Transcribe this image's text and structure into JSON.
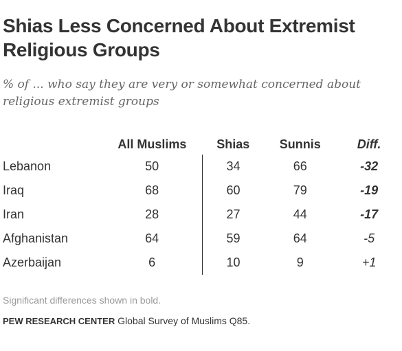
{
  "chart_data": {
    "type": "table",
    "title": "Shias Less Concerned About Extremist Religious Groups",
    "subtitle": "% of ... who say they are very or somewhat concerned about religious extremist groups",
    "columns": [
      "All Muslims",
      "Shias",
      "Sunnis",
      "Diff."
    ],
    "rows": [
      {
        "country": "Lebanon",
        "values": [
          "50",
          "34",
          "66",
          "-32"
        ],
        "diff_significant": true
      },
      {
        "country": "Iraq",
        "values": [
          "68",
          "60",
          "79",
          "-19"
        ],
        "diff_significant": true
      },
      {
        "country": "Iran",
        "values": [
          "28",
          "27",
          "44",
          "-17"
        ],
        "diff_significant": true
      },
      {
        "country": "Afghanistan",
        "values": [
          "64",
          "59",
          "64",
          "-5"
        ],
        "diff_significant": false
      },
      {
        "country": "Azerbaijan",
        "values": [
          "6",
          "10",
          "9",
          "+1"
        ],
        "diff_significant": false
      }
    ],
    "note": "Significant differences shown in bold.",
    "source_org": "Pew Research Center",
    "source_text": " Global Survey of Muslims Q85."
  },
  "colors": {
    "text": "#333333",
    "subtitle": "#666666",
    "note": "#999999"
  }
}
